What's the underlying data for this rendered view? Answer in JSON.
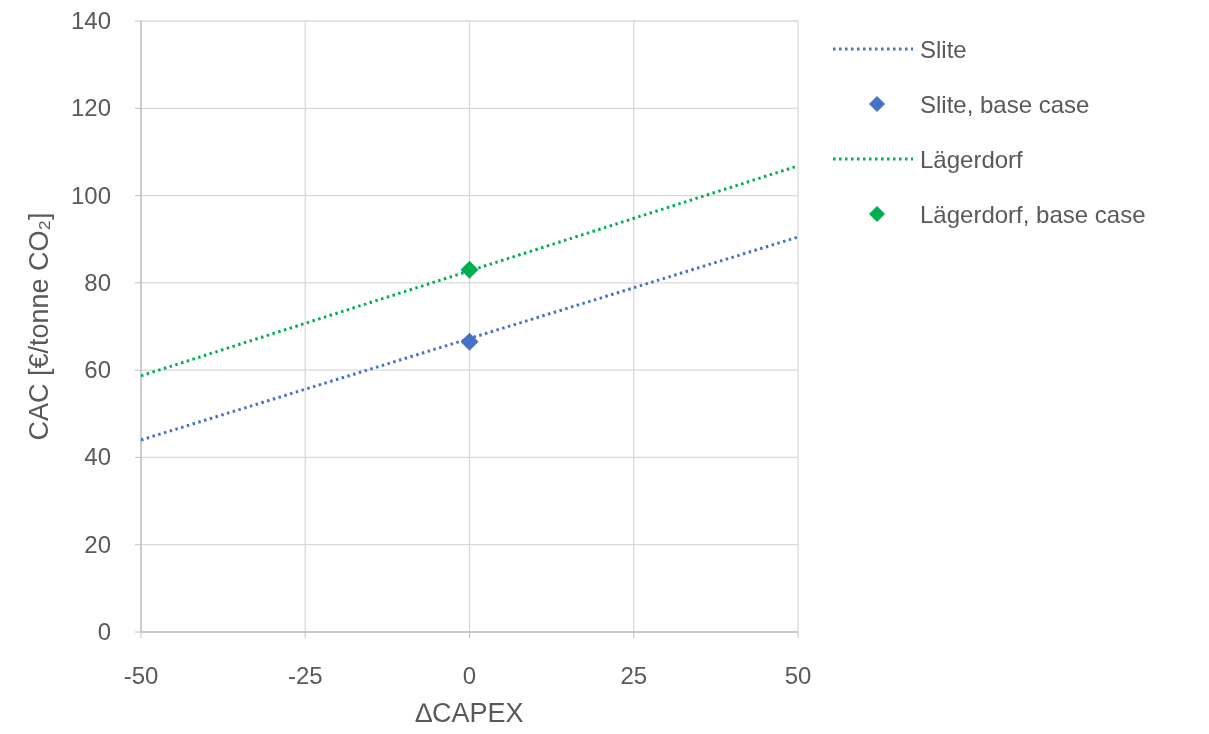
{
  "chart_data": {
    "type": "line",
    "xlabel": "∆CAPEX",
    "ylabel": "CAC [€/tonne CO₂]",
    "xlim": [
      -50,
      50
    ],
    "xticks": [
      -50,
      -25,
      0,
      25,
      50
    ],
    "ylim": [
      0,
      140
    ],
    "yticks": [
      0,
      20,
      40,
      60,
      80,
      100,
      120,
      140
    ],
    "grid": true,
    "legend": "right",
    "series": [
      {
        "name": "Slite",
        "color": "#4472c4",
        "line_style": "dotted",
        "marker": "none",
        "x": [
          -50,
          50
        ],
        "values": [
          44,
          90.5
        ]
      },
      {
        "name": "Slite, base case",
        "type": "scatter",
        "color": "#4472c4",
        "marker": "diamond",
        "x": [
          0
        ],
        "values": [
          66.5
        ]
      },
      {
        "name": "Lägerdorf",
        "color": "#00b050",
        "line_style": "dotted",
        "marker": "none",
        "x": [
          -50,
          50
        ],
        "values": [
          58.7,
          106.8
        ]
      },
      {
        "name": "Lägerdorf, base case",
        "type": "scatter",
        "color": "#00b050",
        "marker": "diamond",
        "x": [
          0
        ],
        "values": [
          83
        ]
      }
    ]
  }
}
